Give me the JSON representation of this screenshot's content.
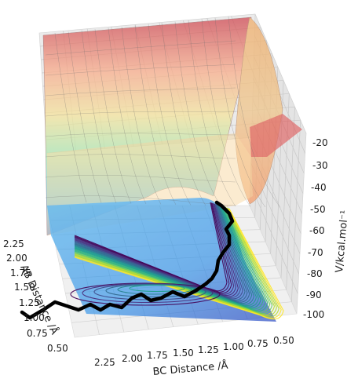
{
  "chart_data": {
    "type": "surface3d",
    "xlabel": "BC Distance /Å",
    "ylabel": "AB Distance /Å",
    "zlabel": "V/kcal.mol⁻¹",
    "x_ticks": [
      "2.25",
      "2.00",
      "1.75",
      "1.50",
      "1.25",
      "1.00",
      "0.75",
      "0.50"
    ],
    "y_ticks": [
      "2.25",
      "2.00",
      "1.75",
      "1.50",
      "1.25",
      "1.00",
      "0.75",
      "0.50"
    ],
    "z_ticks": [
      "-20",
      "-30",
      "-40",
      "-50",
      "-60",
      "-70",
      "-80",
      "-90",
      "-100"
    ],
    "xlim": [
      0.5,
      2.4
    ],
    "ylim": [
      0.5,
      2.4
    ],
    "zlim": [
      -100,
      -15
    ],
    "grid": true,
    "surface_colormap": "jet",
    "contour_colormap": "viridis",
    "trajectory_color": "#000000"
  }
}
